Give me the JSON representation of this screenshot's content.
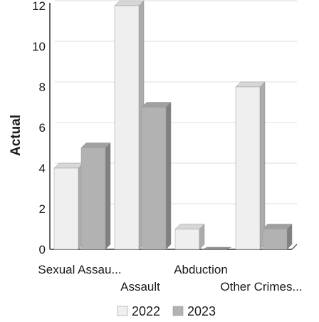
{
  "chart_data": {
    "type": "bar",
    "ylabel": "Actual",
    "ylim": [
      0,
      12
    ],
    "yticks": [
      0,
      2,
      4,
      6,
      8,
      10,
      12
    ],
    "categories": [
      "Sexual Assau...",
      "Assault",
      "Abduction",
      "Other Crimes..."
    ],
    "series": [
      {
        "name": "2022",
        "values": [
          4,
          12,
          1,
          8
        ]
      },
      {
        "name": "2023",
        "values": [
          5,
          7,
          0,
          1
        ]
      }
    ],
    "grid": true,
    "legend": "bottom",
    "colors": {
      "2022": "#efefef",
      "2023": "#b2b2b2"
    }
  }
}
